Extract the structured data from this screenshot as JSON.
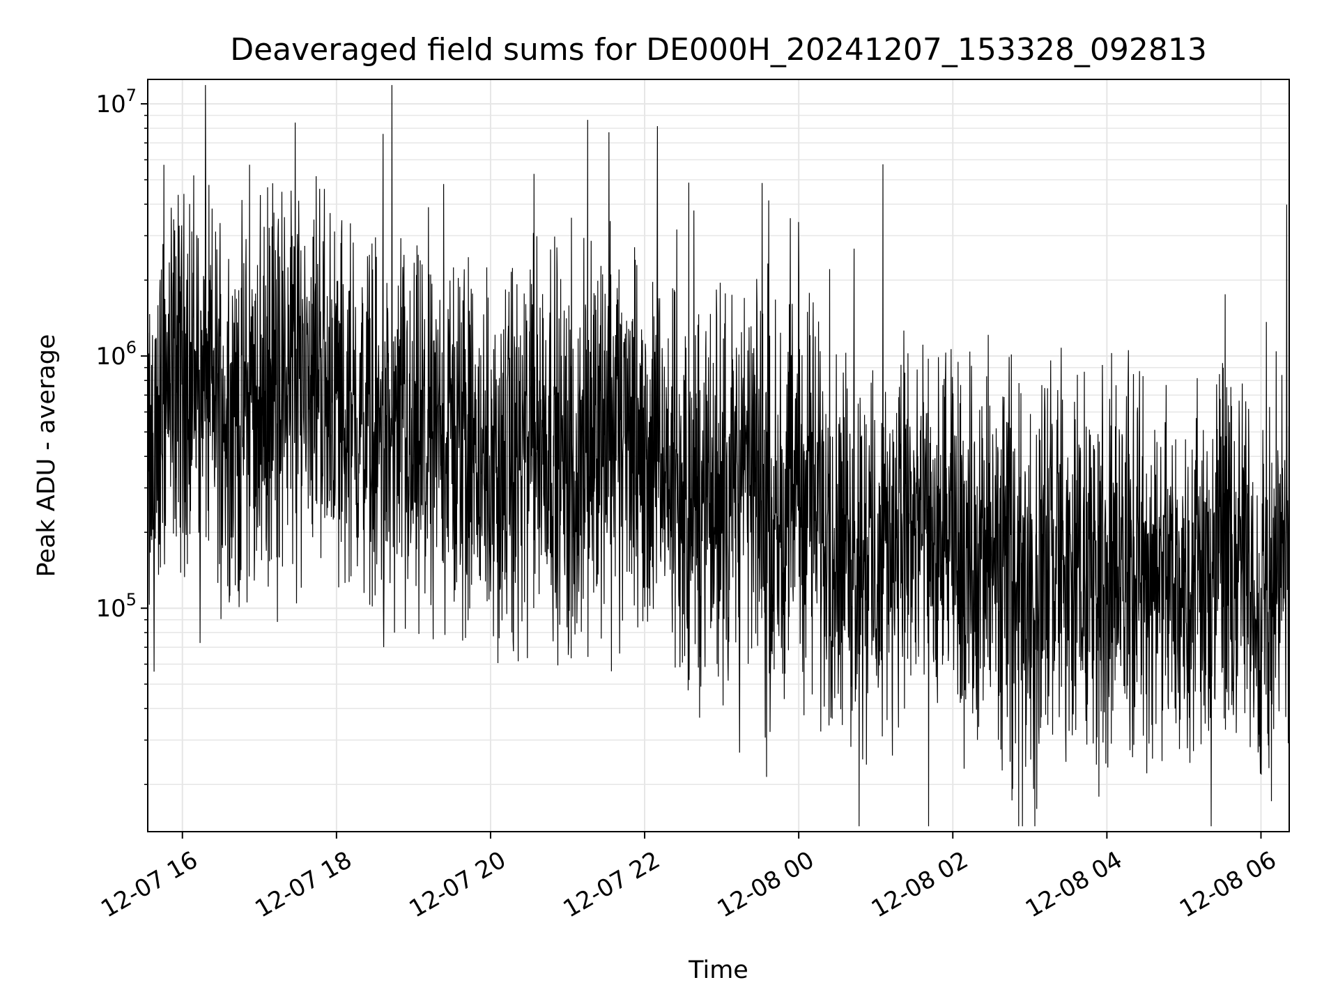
{
  "chart_data": {
    "type": "line",
    "title": "Deaveraged field sums for DE000H_20241207_153328_092813",
    "xlabel": "Time",
    "ylabel": "Peak ADU - average",
    "yscale": "log",
    "ylim": [
      13000,
      12500000
    ],
    "xlim": [
      "2024-12-07 15:33",
      "2024-12-08 06:22"
    ],
    "grid": true,
    "line_color": "#000000",
    "grid_color": "#e6e6e6",
    "x_ticks": [
      {
        "value": "2024-12-07 16:00",
        "label": "12-07 16"
      },
      {
        "value": "2024-12-07 18:00",
        "label": "12-07 18"
      },
      {
        "value": "2024-12-07 20:00",
        "label": "12-07 20"
      },
      {
        "value": "2024-12-07 22:00",
        "label": "12-07 22"
      },
      {
        "value": "2024-12-08 00:00",
        "label": "12-08 00"
      },
      {
        "value": "2024-12-08 02:00",
        "label": "12-08 02"
      },
      {
        "value": "2024-12-08 04:00",
        "label": "12-08 04"
      },
      {
        "value": "2024-12-08 06:00",
        "label": "12-08 06"
      }
    ],
    "y_ticks": [
      {
        "value": 100000,
        "base": "10",
        "exp": "5"
      },
      {
        "value": 1000000,
        "base": "10",
        "exp": "6"
      },
      {
        "value": 10000000,
        "base": "10",
        "exp": "7"
      }
    ],
    "series": [
      {
        "x": [
          "2024-12-07 15:33",
          "2024-12-07 15:45",
          "2024-12-07 16:00",
          "2024-12-07 16:15",
          "2024-12-07 16:30",
          "2024-12-07 16:45",
          "2024-12-07 17:00",
          "2024-12-07 17:15",
          "2024-12-07 17:30",
          "2024-12-07 17:45",
          "2024-12-07 18:00",
          "2024-12-07 18:15",
          "2024-12-07 18:30",
          "2024-12-07 18:45",
          "2024-12-07 19:00",
          "2024-12-07 19:15",
          "2024-12-07 19:30",
          "2024-12-07 19:45",
          "2024-12-07 20:00",
          "2024-12-07 20:15",
          "2024-12-07 20:30",
          "2024-12-07 20:45",
          "2024-12-07 21:00",
          "2024-12-07 21:15",
          "2024-12-07 21:30",
          "2024-12-07 21:45",
          "2024-12-07 22:00",
          "2024-12-07 22:15",
          "2024-12-07 22:30",
          "2024-12-07 22:45",
          "2024-12-07 23:00",
          "2024-12-07 23:15",
          "2024-12-07 23:30",
          "2024-12-07 23:45",
          "2024-12-08 00:00",
          "2024-12-08 00:15",
          "2024-12-08 00:30",
          "2024-12-08 00:45",
          "2024-12-08 01:00",
          "2024-12-08 01:15",
          "2024-12-08 01:30",
          "2024-12-08 01:45",
          "2024-12-08 02:00",
          "2024-12-08 02:15",
          "2024-12-08 02:30",
          "2024-12-08 02:45",
          "2024-12-08 03:00",
          "2024-12-08 03:15",
          "2024-12-08 03:30",
          "2024-12-08 03:45",
          "2024-12-08 04:00",
          "2024-12-08 04:15",
          "2024-12-08 04:30",
          "2024-12-08 04:45",
          "2024-12-08 05:00",
          "2024-12-08 05:15",
          "2024-12-08 05:30",
          "2024-12-08 05:45",
          "2024-12-08 06:00",
          "2024-12-08 06:15"
        ],
        "y": [
          300000,
          700000,
          900000,
          800000,
          700000,
          600000,
          650000,
          800000,
          900000,
          1000000,
          700000,
          550000,
          500000,
          450000,
          400000,
          450000,
          500000,
          400000,
          350000,
          350000,
          450000,
          550000,
          300000,
          450000,
          600000,
          500000,
          400000,
          350000,
          250000,
          250000,
          300000,
          350000,
          300000,
          250000,
          300000,
          250000,
          200000,
          180000,
          150000,
          200000,
          200000,
          180000,
          180000,
          160000,
          140000,
          130000,
          140000,
          160000,
          150000,
          140000,
          130000,
          150000,
          140000,
          130000,
          140000,
          150000,
          150000,
          160000,
          90000,
          150000
        ]
      }
    ]
  }
}
